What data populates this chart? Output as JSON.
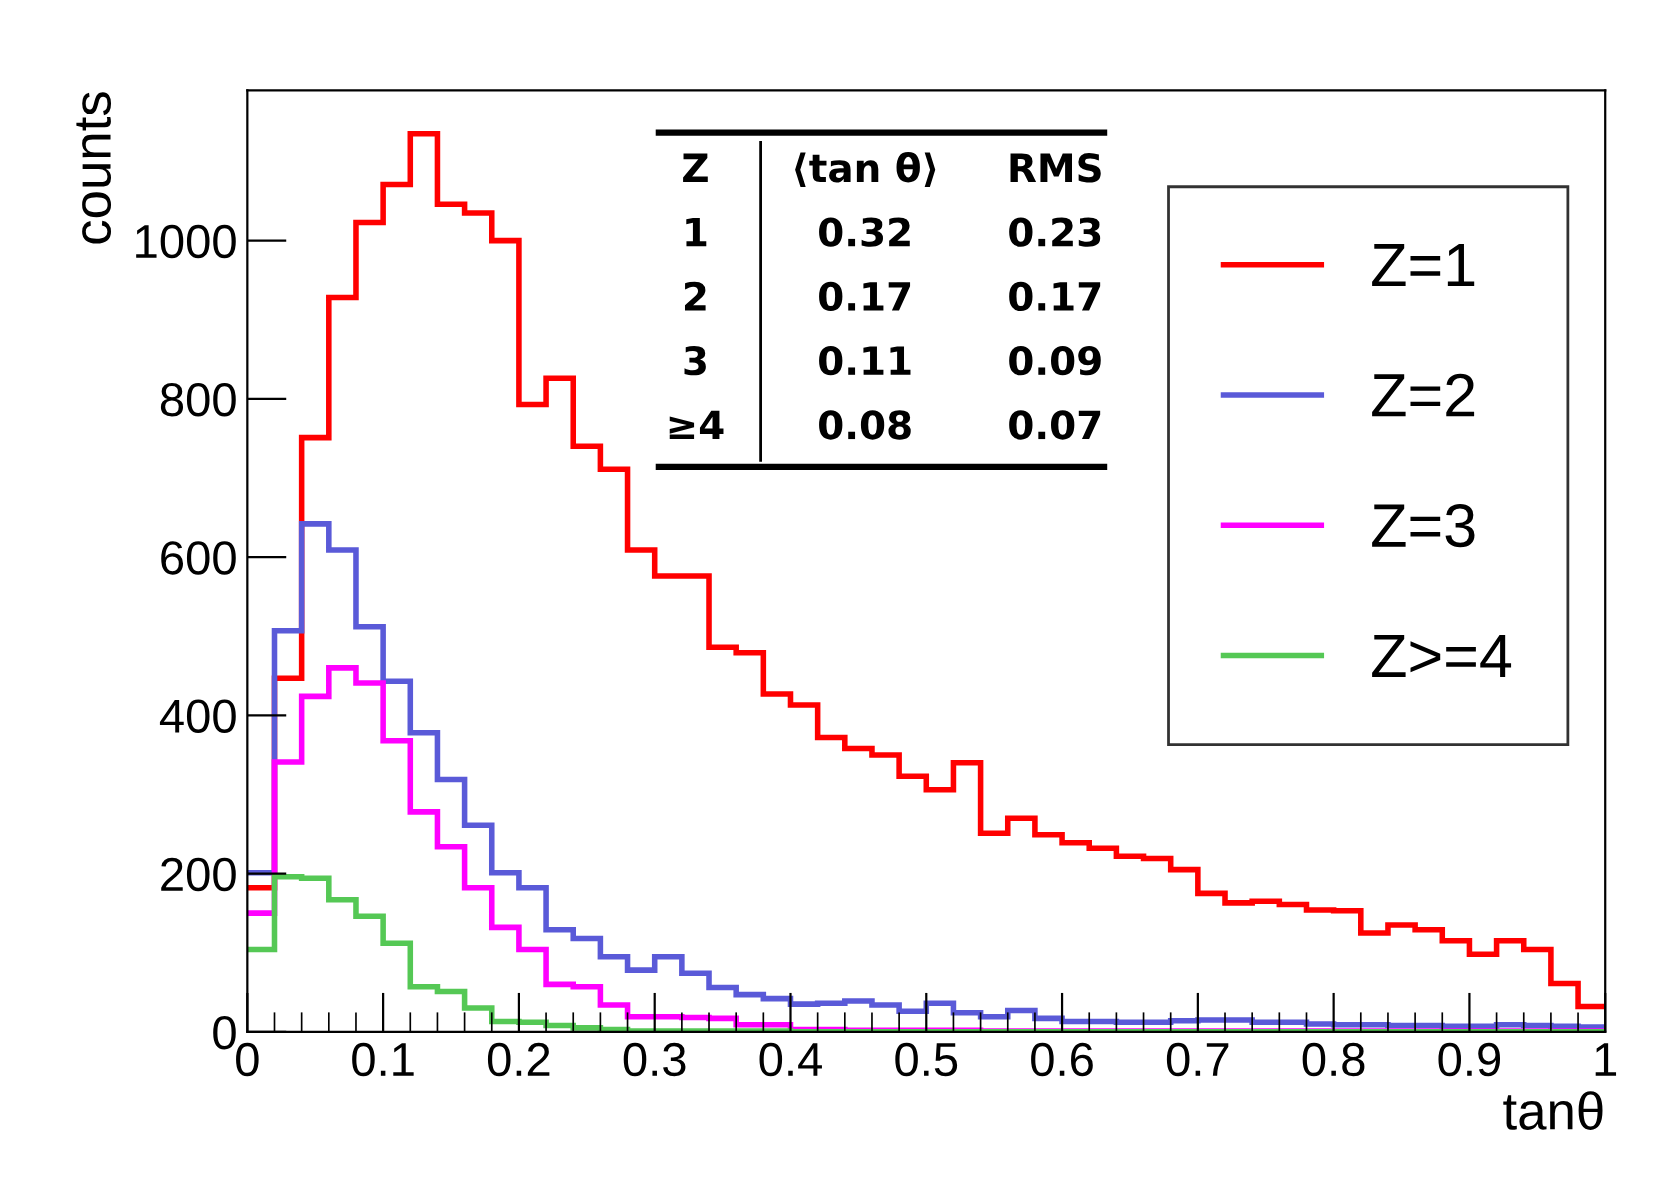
{
  "chart_data": {
    "type": "histogram",
    "xlabel": "tanθ",
    "ylabel": "counts",
    "bins": [
      0,
      0.02,
      0.04,
      0.06,
      0.08,
      0.1,
      0.12,
      0.14,
      0.16,
      0.18,
      0.2,
      0.22,
      0.24,
      0.26,
      0.28,
      0.3,
      0.32,
      0.34,
      0.36,
      0.38,
      0.4,
      0.42,
      0.44,
      0.46,
      0.48,
      0.5,
      0.52,
      0.54,
      0.56,
      0.58,
      0.6,
      0.62,
      0.64,
      0.66,
      0.68,
      0.7,
      0.72,
      0.74,
      0.76,
      0.78,
      0.8,
      0.82,
      0.84,
      0.86,
      0.88,
      0.9,
      0.92,
      0.94,
      0.96,
      0.98,
      1
    ],
    "series": [
      {
        "name": "Z=1",
        "color": "#ff0000",
        "values": [
          182,
          447,
          751,
          928,
          1023,
          1071,
          1135,
          1046,
          1035,
          1000,
          793,
          826,
          740,
          711,
          609,
          576,
          576,
          486,
          479,
          427,
          413,
          372,
          358,
          350,
          323,
          306,
          340,
          251,
          270,
          249,
          239,
          232,
          222,
          219,
          205,
          175,
          163,
          165,
          161,
          154,
          153,
          125,
          135,
          129,
          115,
          98,
          115,
          104,
          61,
          32
        ]
      },
      {
        "name": "Z=2",
        "color": "#5a5ad8",
        "values": [
          201,
          507,
          642,
          609,
          512,
          443,
          378,
          319,
          261,
          201,
          182,
          129,
          118,
          95,
          78,
          95,
          74,
          56,
          47,
          42,
          35,
          36,
          39,
          34,
          26,
          36,
          24,
          19,
          27,
          17,
          13,
          13,
          12,
          12,
          14,
          15,
          15,
          12,
          12,
          10,
          9,
          9,
          8,
          8,
          7,
          7,
          9,
          8,
          7,
          6
        ]
      },
      {
        "name": "Z=3",
        "color": "#ff00ff",
        "values": [
          150,
          341,
          424,
          460,
          441,
          368,
          278,
          234,
          182,
          132,
          104,
          60,
          57,
          34,
          19,
          19,
          18,
          17,
          9,
          9,
          3,
          3,
          2,
          2,
          2,
          2,
          2,
          1,
          1,
          1,
          1,
          1,
          1,
          1,
          1,
          1,
          1,
          1,
          1,
          1,
          1,
          1,
          1,
          1,
          1,
          1,
          1,
          1,
          1,
          1
        ]
      },
      {
        "name": "Z>=4",
        "color": "#55c855",
        "values": [
          104,
          196,
          194,
          167,
          146,
          112,
          57,
          51,
          30,
          13,
          12,
          8,
          5,
          3,
          1,
          1,
          1,
          1,
          1,
          1,
          0,
          0,
          0,
          0,
          0,
          0,
          0,
          0,
          0,
          0,
          0,
          0,
          0,
          0,
          0,
          0,
          0,
          0,
          0,
          0,
          0,
          0,
          0,
          0,
          0,
          0,
          0,
          0,
          0,
          0
        ]
      }
    ],
    "xlim": [
      0,
      1
    ],
    "xticks": [
      0,
      0.1,
      0.2,
      0.3,
      0.4,
      0.5,
      0.6,
      0.7,
      0.8,
      0.9,
      1
    ],
    "ylim": [
      0,
      1190
    ],
    "yticks": [
      0,
      200,
      400,
      600,
      800,
      1000
    ],
    "grid": false,
    "legend": "right",
    "annotations": [
      "Z",
      "⟨tan θ⟩",
      "RMS",
      "1",
      "0.32",
      "0.23",
      "2",
      "0.17",
      "0.17",
      "3",
      "0.11",
      "0.09",
      "≥4",
      "0.08",
      "0.07"
    ]
  }
}
